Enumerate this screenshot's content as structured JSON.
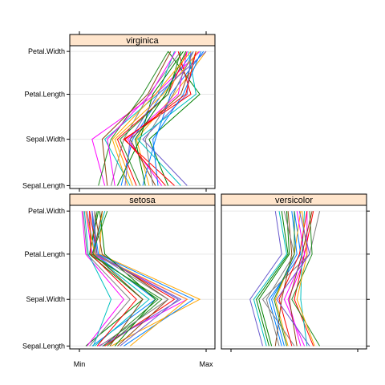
{
  "chart_data": {
    "type": "parallel_coordinates",
    "variables": [
      "Sepal.Length",
      "Sepal.Width",
      "Petal.Length",
      "Petal.Width"
    ],
    "x_axis_ticks": [
      "Min",
      "Max"
    ],
    "panels": [
      {
        "name": "virginica",
        "lines": [
          [
            0.33,
            0.42,
            0.65,
            0.9
          ],
          [
            0.2,
            0.1,
            0.6,
            0.95
          ],
          [
            0.7,
            0.55,
            0.95,
            0.7
          ],
          [
            0.45,
            0.3,
            0.7,
            0.85
          ],
          [
            0.55,
            0.45,
            0.75,
            1.0
          ],
          [
            0.25,
            0.35,
            0.55,
            0.8
          ],
          [
            0.6,
            0.4,
            0.8,
            0.92
          ],
          [
            0.4,
            0.2,
            0.62,
            0.75
          ],
          [
            0.85,
            0.5,
            0.85,
            0.88
          ],
          [
            0.15,
            0.25,
            0.5,
            0.7
          ],
          [
            0.5,
            0.6,
            0.72,
            0.98
          ],
          [
            0.65,
            0.38,
            0.78,
            0.85
          ],
          [
            0.3,
            0.48,
            0.58,
            0.82
          ],
          [
            0.75,
            0.35,
            0.88,
            0.78
          ],
          [
            0.42,
            0.28,
            0.66,
            0.94
          ],
          [
            0.58,
            0.52,
            0.74,
            0.9
          ],
          [
            0.22,
            0.18,
            0.54,
            0.72
          ],
          [
            0.8,
            0.46,
            0.92,
            0.86
          ],
          [
            0.36,
            0.4,
            0.62,
            1.0
          ],
          [
            0.48,
            0.32,
            0.7,
            0.8
          ],
          [
            0.62,
            0.58,
            0.82,
            0.96
          ],
          [
            0.28,
            0.22,
            0.56,
            0.76
          ],
          [
            0.52,
            0.44,
            0.68,
            0.84
          ],
          [
            0.68,
            0.36,
            0.84,
            0.92
          ],
          [
            0.38,
            0.26,
            0.6,
            0.88
          ]
        ]
      },
      {
        "name": "setosa",
        "lines": [
          [
            0.1,
            0.6,
            0.12,
            0.1
          ],
          [
            0.15,
            0.85,
            0.1,
            0.05
          ],
          [
            0.05,
            0.5,
            0.08,
            0.15
          ],
          [
            0.2,
            0.75,
            0.14,
            0.08
          ],
          [
            0.25,
            0.95,
            0.16,
            0.18
          ],
          [
            0.08,
            0.4,
            0.06,
            0.03
          ],
          [
            0.3,
            0.7,
            0.18,
            0.12
          ],
          [
            0.12,
            0.55,
            0.1,
            0.2
          ],
          [
            0.18,
            0.8,
            0.12,
            0.06
          ],
          [
            0.22,
            0.65,
            0.08,
            0.14
          ],
          [
            0.35,
            0.9,
            0.15,
            0.1
          ],
          [
            0.06,
            0.35,
            0.05,
            0.02
          ],
          [
            0.28,
            0.6,
            0.2,
            0.16
          ],
          [
            0.14,
            0.45,
            0.09,
            0.08
          ],
          [
            0.4,
            0.85,
            0.12,
            0.05
          ],
          [
            0.16,
            0.7,
            0.13,
            0.12
          ],
          [
            0.24,
            0.5,
            0.11,
            0.18
          ],
          [
            0.11,
            0.25,
            0.07,
            0.04
          ],
          [
            0.32,
            0.78,
            0.14,
            0.1
          ],
          [
            0.19,
            0.62,
            0.1,
            0.22
          ]
        ]
      },
      {
        "name": "versicolor",
        "lines": [
          [
            0.4,
            0.3,
            0.55,
            0.5
          ],
          [
            0.55,
            0.45,
            0.6,
            0.6
          ],
          [
            0.3,
            0.2,
            0.45,
            0.4
          ],
          [
            0.65,
            0.5,
            0.58,
            0.65
          ],
          [
            0.45,
            0.35,
            0.5,
            0.55
          ],
          [
            0.5,
            0.25,
            0.62,
            0.7
          ],
          [
            0.35,
            0.4,
            0.48,
            0.45
          ],
          [
            0.6,
            0.55,
            0.56,
            0.58
          ],
          [
            0.25,
            0.15,
            0.4,
            0.35
          ],
          [
            0.7,
            0.48,
            0.64,
            0.62
          ],
          [
            0.42,
            0.32,
            0.52,
            0.48
          ],
          [
            0.58,
            0.42,
            0.58,
            0.52
          ],
          [
            0.32,
            0.22,
            0.46,
            0.44
          ],
          [
            0.48,
            0.38,
            0.54,
            0.6
          ],
          [
            0.66,
            0.52,
            0.6,
            0.56
          ],
          [
            0.38,
            0.28,
            0.5,
            0.42
          ],
          [
            0.52,
            0.46,
            0.56,
            0.64
          ],
          [
            0.28,
            0.18,
            0.44,
            0.38
          ],
          [
            0.62,
            0.36,
            0.62,
            0.54
          ],
          [
            0.44,
            0.34,
            0.5,
            0.5
          ]
        ]
      }
    ],
    "colors": [
      "#0080ff",
      "#ff00ff",
      "#008000",
      "#ff0000",
      "#ffa500",
      "#808080",
      "#8b4513",
      "#00c0c0",
      "#6a5acd",
      "#228b22"
    ]
  }
}
